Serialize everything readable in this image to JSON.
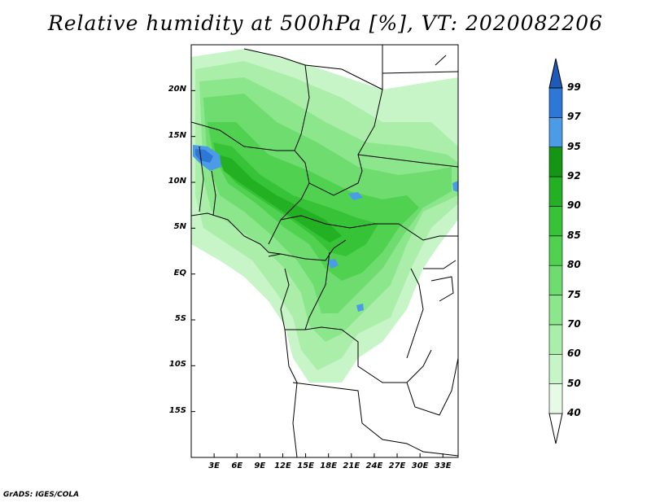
{
  "title": "Relative humidity at 500hPa [%], VT: 2020082206",
  "credit": "GrADS: IGES/COLA",
  "map": {
    "lon_range": [
      0,
      35
    ],
    "lat_range": [
      -20,
      25
    ],
    "lat_ticks": [
      {
        "value": 20,
        "label": "20N"
      },
      {
        "value": 15,
        "label": "15N"
      },
      {
        "value": 10,
        "label": "10N"
      },
      {
        "value": 5,
        "label": "5N"
      },
      {
        "value": 0,
        "label": "EQ"
      },
      {
        "value": -5,
        "label": "5S"
      },
      {
        "value": -10,
        "label": "10S"
      },
      {
        "value": -15,
        "label": "15S"
      }
    ],
    "lon_ticks": [
      {
        "value": 3,
        "label": "3E"
      },
      {
        "value": 6,
        "label": "6E"
      },
      {
        "value": 9,
        "label": "9E"
      },
      {
        "value": 12,
        "label": "12E"
      },
      {
        "value": 15,
        "label": "15E"
      },
      {
        "value": 18,
        "label": "18E"
      },
      {
        "value": 21,
        "label": "21E"
      },
      {
        "value": 24,
        "label": "24E"
      },
      {
        "value": 27,
        "label": "27E"
      },
      {
        "value": 30,
        "label": "30E"
      },
      {
        "value": 33,
        "label": "33E"
      }
    ]
  },
  "colorbar": {
    "levels": [
      "40",
      "50",
      "60",
      "70",
      "75",
      "80",
      "85",
      "90",
      "92",
      "95",
      "97",
      "99"
    ],
    "colors": [
      "#e6fae6",
      "#c8f5c8",
      "#aaeeaa",
      "#8ce68c",
      "#6edc6e",
      "#50d250",
      "#37c337",
      "#23b023",
      "#149614",
      "#4b9be6",
      "#2d78d7",
      "#1e5ab9"
    ],
    "under_color": "#ffffff"
  },
  "colors": {
    "border": "#000000",
    "background": "#ffffff"
  }
}
